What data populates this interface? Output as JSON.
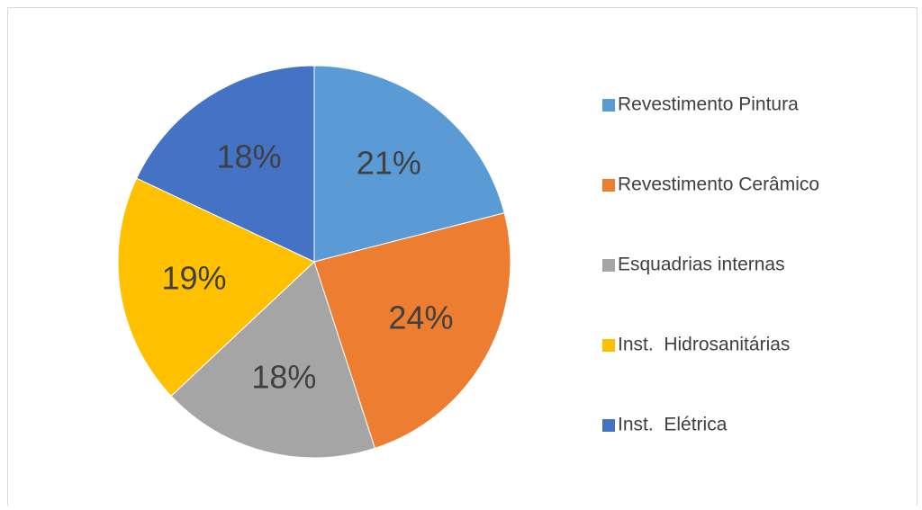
{
  "chart_data": {
    "type": "pie",
    "categories": [
      "Revestimento Pintura",
      "Revestimento Cerâmico",
      "Esquadrias internas",
      "Inst.  Hidrosanitárias",
      "Inst.  Elétrica"
    ],
    "values": [
      21,
      24,
      18,
      19,
      18
    ],
    "value_labels": [
      "21%",
      "24%",
      "18%",
      "19%",
      "18%"
    ],
    "colors": [
      "#5b9bd5",
      "#ed7d31",
      "#a5a5a5",
      "#ffc000",
      "#4472c4"
    ],
    "legend": "right"
  }
}
